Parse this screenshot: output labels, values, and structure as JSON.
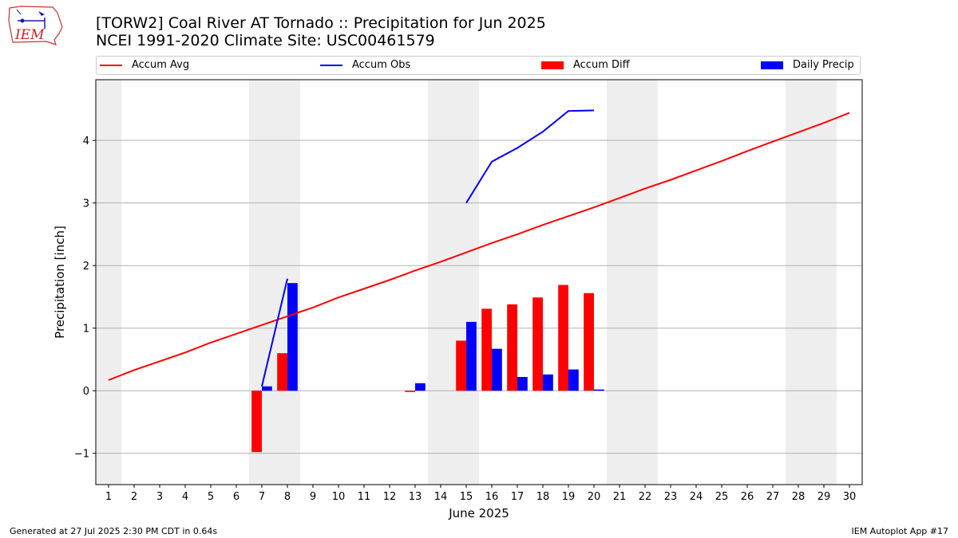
{
  "page": {
    "title_line1": "[TORW2] Coal River  AT Tornado :: Precipitation for Jun 2025",
    "title_line2": "NCEI 1991-2020 Climate Site: USC00461579",
    "logo_text": "IEM",
    "footer_left": "Generated at 27 Jul 2025 2:30 PM CDT in 0.64s",
    "footer_right": "IEM Autoplot App #17"
  },
  "chart_data": {
    "type": "bar",
    "xlabel": "June 2025",
    "ylabel": "Precipitation [inch]",
    "xlim": [
      0.5,
      30.5
    ],
    "ylim": [
      -1.5,
      4.97
    ],
    "yticks": [
      -1,
      0,
      1,
      2,
      3,
      4
    ],
    "ytick_labels": [
      "−1",
      "0",
      "1",
      "2",
      "3",
      "4"
    ],
    "xticks": [
      1,
      2,
      3,
      4,
      5,
      6,
      7,
      8,
      9,
      10,
      11,
      12,
      13,
      14,
      15,
      16,
      17,
      18,
      19,
      20,
      21,
      22,
      23,
      24,
      25,
      26,
      27,
      28,
      29,
      30
    ],
    "xtick_labels": [
      "1",
      "2",
      "3",
      "4",
      "5",
      "6",
      "7",
      "8",
      "9",
      "10",
      "11",
      "12",
      "13",
      "14",
      "15",
      "16",
      "17",
      "18",
      "19",
      "20",
      "21",
      "22",
      "23",
      "24",
      "25",
      "26",
      "27",
      "28",
      "29",
      "30"
    ],
    "grid": "horizontal",
    "legend_position": "top",
    "weekend_shading": [
      [
        0.5,
        1.5
      ],
      [
        6.5,
        8.5
      ],
      [
        13.5,
        15.5
      ],
      [
        20.5,
        22.5
      ],
      [
        27.5,
        29.5
      ]
    ],
    "series": [
      {
        "name": "Accum Avg",
        "kind": "line",
        "color": "#ff0000",
        "x": [
          1,
          2,
          3,
          4,
          5,
          6,
          7,
          8,
          9,
          10,
          11,
          12,
          13,
          14,
          15,
          16,
          17,
          18,
          19,
          20,
          21,
          22,
          23,
          24,
          25,
          26,
          27,
          28,
          29,
          30
        ],
        "values": [
          0.17,
          0.33,
          0.47,
          0.61,
          0.77,
          0.91,
          1.05,
          1.19,
          1.33,
          1.49,
          1.63,
          1.77,
          1.92,
          2.06,
          2.21,
          2.36,
          2.5,
          2.65,
          2.79,
          2.93,
          3.08,
          3.23,
          3.37,
          3.52,
          3.67,
          3.83,
          3.98,
          4.13,
          4.28,
          4.44
        ]
      },
      {
        "name": "Accum Obs",
        "kind": "line",
        "color": "#0000ff",
        "x": [
          7,
          8
        ],
        "values": [
          0.07,
          1.79
        ]
      },
      {
        "name": "Accum Obs",
        "kind": "line",
        "color": "#0000ff",
        "legend": false,
        "x": [
          15,
          16,
          17,
          18,
          19,
          20
        ],
        "values": [
          3.0,
          3.66,
          3.88,
          4.14,
          4.47,
          4.48
        ]
      },
      {
        "name": "Accum Diff",
        "kind": "bar",
        "color": "#ff0000",
        "offset": "left",
        "x": [
          7,
          8,
          13,
          15,
          16,
          17,
          18,
          19,
          20
        ],
        "values": [
          -0.98,
          0.6,
          -0.02,
          0.8,
          1.31,
          1.38,
          1.49,
          1.69,
          1.56
        ]
      },
      {
        "name": "Daily Precip",
        "kind": "bar",
        "color": "#0000ff",
        "offset": "right",
        "x": [
          7,
          8,
          13,
          15,
          16,
          17,
          18,
          19,
          20
        ],
        "values": [
          0.07,
          1.72,
          0.12,
          1.1,
          0.67,
          0.22,
          0.26,
          0.34,
          0.02
        ]
      }
    ]
  }
}
